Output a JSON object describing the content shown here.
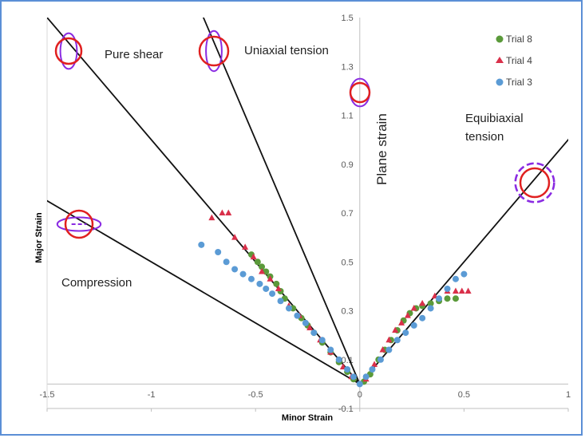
{
  "chart_data": {
    "type": "scatter",
    "xlabel": "Minor Strain",
    "ylabel": "Major Strain",
    "xlim": [
      -1.5,
      1
    ],
    "ylim": [
      -0.1,
      1.5
    ],
    "x_ticks": [
      "-1.5",
      "-1",
      "-0.5",
      "0",
      "0.5",
      "1"
    ],
    "y_ticks": [
      "-0.1",
      "0.1",
      "0.3",
      "0.5",
      "0.7",
      "0.9",
      "1.1",
      "1.3",
      "1.5"
    ],
    "grid": false,
    "legend_position": "top-right",
    "region_labels": {
      "pure_shear": "Pure shear",
      "uniaxial_tension": "Uniaxial tension",
      "plane_strain": "Plane strain",
      "equibiaxial_tension": "Equibiaxial tension",
      "compression": "Compression"
    },
    "series": [
      {
        "name": "Trial 8",
        "color": "#5b9a3a",
        "marker": "circle",
        "points": [
          [
            -0.52,
            0.53
          ],
          [
            -0.49,
            0.5
          ],
          [
            -0.47,
            0.48
          ],
          [
            -0.45,
            0.46
          ],
          [
            -0.43,
            0.44
          ],
          [
            -0.4,
            0.41
          ],
          [
            -0.38,
            0.38
          ],
          [
            -0.36,
            0.35
          ],
          [
            -0.32,
            0.31
          ],
          [
            -0.28,
            0.27
          ],
          [
            -0.25,
            0.24
          ],
          [
            -0.22,
            0.21
          ],
          [
            -0.18,
            0.17
          ],
          [
            -0.14,
            0.13
          ],
          [
            -0.1,
            0.09
          ],
          [
            -0.06,
            0.05
          ],
          [
            -0.03,
            0.02
          ],
          [
            0.02,
            0.01
          ],
          [
            0.05,
            0.04
          ],
          [
            0.09,
            0.1
          ],
          [
            0.12,
            0.14
          ],
          [
            0.15,
            0.18
          ],
          [
            0.18,
            0.22
          ],
          [
            0.21,
            0.26
          ],
          [
            0.24,
            0.29
          ],
          [
            0.27,
            0.31
          ],
          [
            0.3,
            0.32
          ],
          [
            0.34,
            0.33
          ],
          [
            0.38,
            0.34
          ],
          [
            0.42,
            0.35
          ],
          [
            0.46,
            0.35
          ]
        ]
      },
      {
        "name": "Trial 4",
        "color": "#d9304a",
        "marker": "triangle",
        "points": [
          [
            -0.71,
            0.68
          ],
          [
            -0.66,
            0.7
          ],
          [
            -0.63,
            0.7
          ],
          [
            -0.6,
            0.6
          ],
          [
            -0.55,
            0.56
          ],
          [
            -0.51,
            0.52
          ],
          [
            -0.47,
            0.46
          ],
          [
            -0.43,
            0.43
          ],
          [
            -0.39,
            0.39
          ],
          [
            -0.34,
            0.32
          ],
          [
            -0.29,
            0.28
          ],
          [
            -0.24,
            0.23
          ],
          [
            -0.19,
            0.18
          ],
          [
            -0.14,
            0.13
          ],
          [
            -0.08,
            0.07
          ],
          [
            -0.04,
            0.03
          ],
          [
            0.03,
            0.02
          ],
          [
            0.07,
            0.08
          ],
          [
            0.11,
            0.14
          ],
          [
            0.14,
            0.18
          ],
          [
            0.17,
            0.22
          ],
          [
            0.2,
            0.25
          ],
          [
            0.23,
            0.28
          ],
          [
            0.26,
            0.31
          ],
          [
            0.3,
            0.33
          ],
          [
            0.36,
            0.36
          ],
          [
            0.42,
            0.38
          ],
          [
            0.46,
            0.38
          ],
          [
            0.49,
            0.38
          ],
          [
            0.52,
            0.38
          ]
        ]
      },
      {
        "name": "Trial 3",
        "color": "#5b9bd5",
        "marker": "circle",
        "points": [
          [
            -0.76,
            0.57
          ],
          [
            -0.68,
            0.54
          ],
          [
            -0.64,
            0.5
          ],
          [
            -0.6,
            0.47
          ],
          [
            -0.56,
            0.45
          ],
          [
            -0.52,
            0.43
          ],
          [
            -0.48,
            0.41
          ],
          [
            -0.45,
            0.39
          ],
          [
            -0.42,
            0.37
          ],
          [
            -0.38,
            0.34
          ],
          [
            -0.34,
            0.31
          ],
          [
            -0.3,
            0.28
          ],
          [
            -0.26,
            0.25
          ],
          [
            -0.22,
            0.21
          ],
          [
            -0.18,
            0.18
          ],
          [
            -0.14,
            0.14
          ],
          [
            -0.1,
            0.1
          ],
          [
            -0.06,
            0.06
          ],
          [
            -0.03,
            0.03
          ],
          [
            0.0,
            0.0
          ],
          [
            0.03,
            0.03
          ],
          [
            0.06,
            0.06
          ],
          [
            0.1,
            0.1
          ],
          [
            0.14,
            0.14
          ],
          [
            0.18,
            0.18
          ],
          [
            0.22,
            0.21
          ],
          [
            0.26,
            0.24
          ],
          [
            0.3,
            0.27
          ],
          [
            0.34,
            0.31
          ],
          [
            0.38,
            0.35
          ],
          [
            0.42,
            0.39
          ],
          [
            0.46,
            0.43
          ],
          [
            0.5,
            0.45
          ]
        ]
      }
    ]
  }
}
